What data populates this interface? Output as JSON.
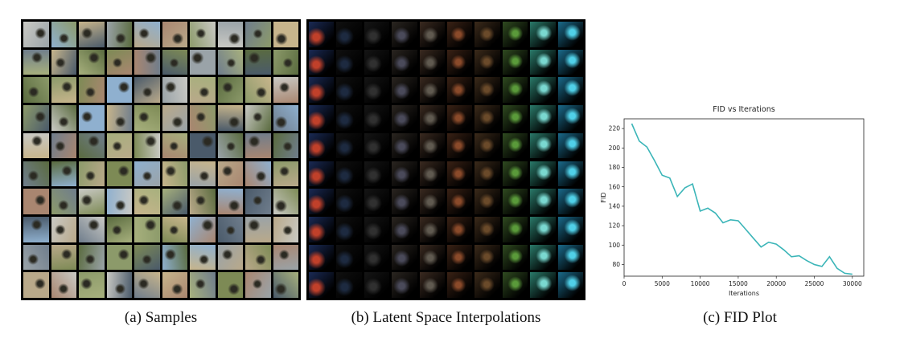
{
  "captions": {
    "a": "(a) Samples",
    "b": "(b) Latent Space Interpolations",
    "c": "(c) FID Plot"
  },
  "colors": {
    "line": "#3bb5b8",
    "grid_border": "#000000"
  },
  "samples_grid": {
    "rows": 10,
    "cols": 10
  },
  "interp_grid": {
    "rows": 10,
    "cols": 10
  },
  "chart_data": {
    "type": "line",
    "title": "FID vs Iterations",
    "xlabel": "Iterations",
    "ylabel": "FID",
    "xlim": [
      0,
      31500
    ],
    "ylim": [
      68,
      230
    ],
    "xticks": [
      0,
      5000,
      10000,
      15000,
      20000,
      25000,
      30000
    ],
    "yticks": [
      80,
      100,
      120,
      140,
      160,
      180,
      200,
      220
    ],
    "grid": false,
    "series": [
      {
        "x": [
          1000,
          2000,
          3000,
          4000,
          5000,
          6000,
          7000,
          8000,
          9000,
          10000,
          11000,
          12000,
          13000,
          14000,
          15000,
          16000,
          17000,
          18000,
          19000,
          20000,
          21000,
          22000,
          23000,
          24000,
          25000,
          26000,
          27000,
          28000,
          29000,
          30000
        ],
        "values": [
          225,
          207,
          201,
          187,
          172,
          169,
          150,
          159,
          163,
          135,
          138,
          133,
          123,
          126,
          125,
          116,
          107,
          98,
          103,
          101,
          95,
          88,
          89,
          84,
          80,
          78,
          88,
          76,
          71,
          70
        ]
      }
    ]
  }
}
